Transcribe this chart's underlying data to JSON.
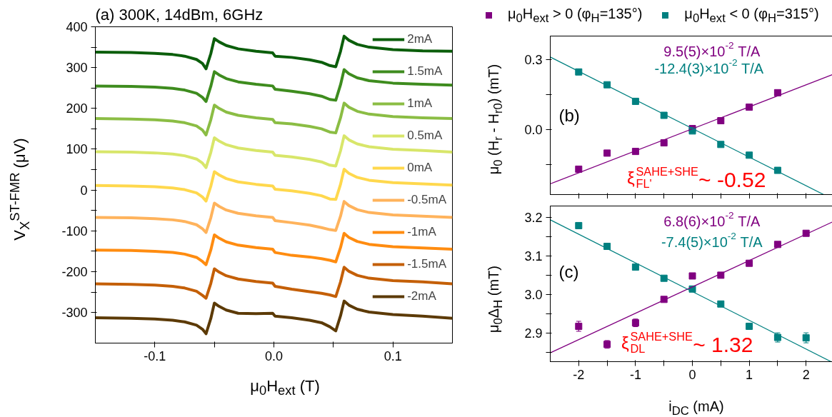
{
  "chart_data": [
    {
      "type": "line",
      "title": "(a) 300K, 14dBm, 6GHz",
      "xlabel": "μ$_{0}$H$_{ext}$ (T)",
      "ylabel": "V$_{X}$$^{ST-FMR}$ (μV)",
      "xlim": [
        -0.15,
        0.15
      ],
      "ylim": [
        -375,
        400
      ],
      "xticks": [
        {
          "value": -0.1,
          "label": "-0.1"
        },
        {
          "value": -0.05,
          "label": null
        },
        {
          "value": 0,
          "label": "0.0"
        },
        {
          "value": 0.05,
          "label": null
        },
        {
          "value": 0.1,
          "label": "0.1"
        }
      ],
      "yticks": [
        -300,
        {
          "value": -250,
          "label": null
        },
        -200,
        {
          "value": -150,
          "label": null
        },
        -100,
        {
          "value": -50,
          "label": null
        },
        0,
        {
          "value": 50,
          "label": null
        },
        100,
        {
          "value": 150,
          "label": null
        },
        200,
        {
          "value": 250,
          "label": null
        },
        300,
        {
          "value": 350,
          "label": null
        },
        400
      ],
      "legend": "top right",
      "x": [
        -0.15,
        -0.12,
        -0.1,
        -0.085,
        -0.075,
        -0.065,
        -0.06,
        -0.057,
        -0.053,
        -0.05,
        -0.046,
        -0.04,
        -0.03,
        -0.015,
        -0.001,
        0.001,
        0.015,
        0.03,
        0.04,
        0.047,
        0.052,
        0.056,
        0.059,
        0.063,
        0.07,
        0.08,
        0.1,
        0.125,
        0.15
      ],
      "series": [
        {
          "name": "2mA",
          "color": "#0b5e0b",
          "values": [
            338,
            337,
            335,
            332,
            328,
            320,
            310,
            297,
            334,
            371,
            363,
            354,
            346,
            340,
            336,
            328,
            325,
            319,
            313,
            305,
            302,
            340,
            377,
            367,
            357,
            350,
            344,
            341,
            340
          ]
        },
        {
          "name": "1.5mA",
          "color": "#3e8c1e",
          "values": [
            255,
            254,
            252,
            249,
            245,
            237,
            227,
            217,
            254,
            290,
            282,
            273,
            265,
            259,
            255,
            247,
            242,
            236,
            230,
            222,
            220,
            258,
            295,
            285,
            275,
            268,
            262,
            259,
            257
          ]
        },
        {
          "name": "1mA",
          "color": "#8bbd44",
          "values": [
            175,
            174,
            172,
            169,
            165,
            157,
            147,
            135,
            172,
            208,
            200,
            191,
            183,
            177,
            173,
            165,
            162,
            156,
            150,
            142,
            140,
            177,
            213,
            203,
            193,
            186,
            180,
            177,
            175
          ]
        },
        {
          "name": "0.5mA",
          "color": "#d8e66a",
          "values": [
            94,
            93,
            91,
            88,
            84,
            76,
            66,
            55,
            92,
            128,
            120,
            111,
            103,
            97,
            93,
            85,
            81,
            75,
            69,
            61,
            59,
            96,
            133,
            123,
            113,
            106,
            100,
            97,
            93
          ]
        },
        {
          "name": "0mA",
          "color": "#ffd84d",
          "values": [
            11,
            10,
            8,
            5,
            1,
            -7,
            -17,
            -27,
            9,
            45,
            37,
            28,
            20,
            14,
            10,
            2,
            -2,
            -8,
            -14,
            -22,
            -23,
            14,
            51,
            41,
            31,
            24,
            18,
            15,
            12
          ]
        },
        {
          "name": "-0.5mA",
          "color": "#ffb35c",
          "values": [
            -67,
            -68,
            -70,
            -73,
            -77,
            -85,
            -95,
            -104,
            -68,
            -32,
            -40,
            -49,
            -57,
            -63,
            -67,
            -75,
            -80,
            -86,
            -92,
            -97,
            -99,
            -64,
            -28,
            -38,
            -48,
            -55,
            -61,
            -64,
            -67
          ]
        },
        {
          "name": "-1mA",
          "color": "#ff8c10",
          "values": [
            -147,
            -148,
            -150,
            -153,
            -157,
            -165,
            -175,
            -183,
            -147,
            -110,
            -118,
            -127,
            -135,
            -141,
            -145,
            -153,
            -160,
            -164,
            -168,
            -172,
            -176,
            -141,
            -106,
            -116,
            -126,
            -133,
            -139,
            -142,
            -145
          ]
        },
        {
          "name": "-1.5mA",
          "color": "#c45f06",
          "values": [
            -230,
            -231,
            -233,
            -236,
            -240,
            -248,
            -258,
            -265,
            -229,
            -193,
            -201,
            -210,
            -218,
            -224,
            -228,
            -236,
            -243,
            -249,
            -253,
            -257,
            -261,
            -225,
            -189,
            -199,
            -209,
            -216,
            -222,
            -225,
            -230
          ]
        },
        {
          "name": "-2mA",
          "color": "#5c3a06",
          "values": [
            -313,
            -314,
            -316,
            -319,
            -323,
            -331,
            -341,
            -352,
            -315,
            -277,
            -285,
            -294,
            -302,
            -303,
            -302,
            -309,
            -313,
            -319,
            -325,
            -335,
            -345,
            -308,
            -272,
            -282,
            -292,
            -299,
            -305,
            -309,
            -314
          ]
        }
      ]
    },
    {
      "type": "scatter",
      "ylabel": "μ$_{0}$ (H$_{r}$ - H$_{r0}$) (mT)",
      "xlim": [
        -2.5,
        2.5
      ],
      "ylim": [
        -0.28,
        0.4
      ],
      "xticks": [
        -2,
        {
          "value": -1.5,
          "label": null
        },
        -1,
        {
          "value": -0.5,
          "label": null
        },
        0,
        {
          "value": 0.5,
          "label": null
        },
        1,
        {
          "value": 1.5,
          "label": null
        },
        2
      ],
      "yticks": [
        {
          "value": -0.15,
          "label": null
        },
        {
          "value": 0,
          "label": "0.0"
        },
        {
          "value": 0.15,
          "label": null
        },
        {
          "value": 0.3,
          "label": "0.3"
        }
      ],
      "tick_labels": "y",
      "legend": "top",
      "x": [
        -2,
        -1.5,
        -1,
        -0.5,
        0,
        0.5,
        1,
        1.5
      ],
      "series": [
        {
          "name": "μ$_{0}$H$_{ext}$ > 0 (φ$_{H}$=135°)",
          "marker": "square",
          "color": "#800080",
          "values": [
            -0.171,
            -0.102,
            -0.095,
            -0.058,
            0.003,
            0.037,
            0.095,
            0.157
          ]
        },
        {
          "name": "μ$_{0}$H$_{ext}$ < 0 (φ$_{H}$=315°)",
          "marker": "square",
          "color": "#008080",
          "values": [
            0.246,
            0.191,
            0.12,
            0.06,
            -0.007,
            -0.065,
            -0.111,
            -0.176
          ]
        },
        {
          "type": "line",
          "color": "#800080",
          "x": [
            -2.5,
            2.5
          ],
          "values": [
            -0.234,
            0.238
          ]
        },
        {
          "type": "line",
          "color": "#008080",
          "x": [
            -2.5,
            2.31
          ],
          "values": [
            0.31,
            -0.28
          ]
        }
      ],
      "annotations": [
        "9.5(5)×10$^{-2}$ T/A",
        "-12.4(3)×10$^{-2}$ T/A",
        "(b)",
        "ξ$^{SAHE+SHE}$$_{FL'}$~ -0.52"
      ]
    },
    {
      "type": "scatter",
      "xlabel": "i$_{DC}$ (mA)",
      "ylabel": "μ$_{0}$Δ$_{H}$ (mT)",
      "xlim": [
        -2.5,
        2.5
      ],
      "ylim": [
        2.825,
        3.23
      ],
      "xticks": [
        -2,
        {
          "value": -1.5,
          "label": null
        },
        -1,
        {
          "value": -0.5,
          "label": null
        },
        0,
        {
          "value": 0.5,
          "label": null
        },
        1,
        {
          "value": 1.5,
          "label": null
        },
        2
      ],
      "yticks": [
        {
          "value": 2.85,
          "label": null
        },
        {
          "value": 2.9,
          "label": "2.9"
        },
        {
          "value": 2.95,
          "label": null
        },
        {
          "value": 3.0,
          "label": "3.0"
        },
        {
          "value": 3.05,
          "label": null
        },
        {
          "value": 3.1,
          "label": "3.1"
        },
        {
          "value": 3.15,
          "label": null
        },
        {
          "value": 3.2,
          "label": "3.2"
        }
      ],
      "x": [
        -2,
        -1.5,
        -1,
        -0.5,
        0,
        0.5,
        1,
        1.5,
        2
      ],
      "series": [
        {
          "marker": "square",
          "color": "#800080",
          "values": [
            2.917,
            2.87,
            2.926,
            2.987,
            3.048,
            3.05,
            3.081,
            3.13,
            3.159
          ],
          "errors": [
            0.013,
            0.01,
            0.01,
            null,
            null,
            null,
            null,
            null,
            null
          ]
        },
        {
          "marker": "square",
          "color": "#008080",
          "values": [
            3.179,
            3.125,
            3.071,
            3.042,
            3.014,
            2.975,
            2.917,
            2.888,
            2.887
          ],
          "errors": [
            0.008,
            null,
            null,
            null,
            null,
            null,
            0.008,
            0.012,
            0.013
          ]
        },
        {
          "type": "line",
          "color": "#800080",
          "x": [
            -2.5,
            2.5
          ],
          "values": [
            2.848,
            3.191
          ]
        },
        {
          "type": "line",
          "color": "#008080",
          "x": [
            -2.5,
            2.44
          ],
          "values": [
            3.194,
            2.825
          ]
        }
      ],
      "annotations": [
        "6.8(6)×10$^{-2}$ T/A",
        "-7.4(5)×10$^{-2}$ T/A",
        "(c)",
        "ξ$^{SAHE+SHE}$$_{DL}$~ 1.32"
      ]
    }
  ]
}
